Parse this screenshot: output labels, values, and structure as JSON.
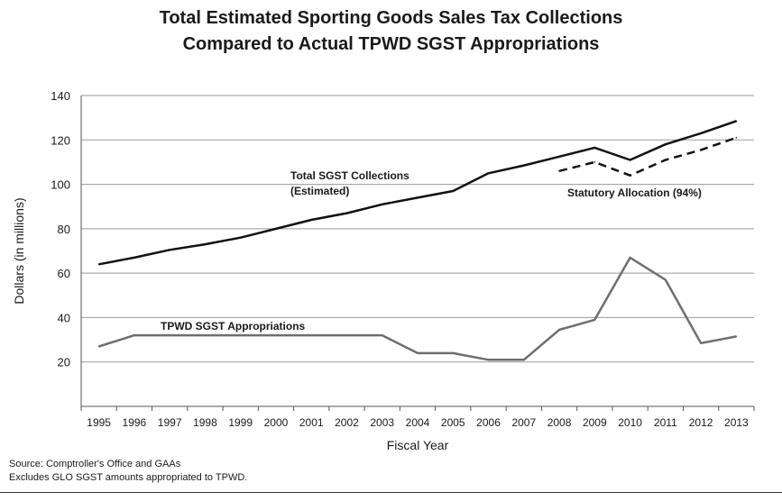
{
  "title_line1": "Total Estimated Sporting Goods Sales Tax Collections",
  "title_line2": "Compared to Actual TPWD SGST Appropriations",
  "source_note": "Source: Comptroller's Office and GAAs",
  "exclusion_note": "Excludes GLO SGST amounts appropriated to TPWD.",
  "chart_data": {
    "type": "line",
    "title": "Total Estimated Sporting Goods Sales Tax Collections Compared to Actual TPWD SGST Appropriations",
    "xlabel": "Fiscal Year",
    "ylabel": "Dollars (in millions)",
    "ylim": [
      0,
      140
    ],
    "yticks": [
      20,
      40,
      60,
      80,
      100,
      120,
      140
    ],
    "grid": true,
    "x": [
      "1995",
      "1996",
      "1997",
      "1998",
      "1999",
      "2000",
      "2001",
      "2002",
      "2003",
      "2004",
      "2005",
      "2006",
      "2007",
      "2008",
      "2009",
      "2010",
      "2011",
      "2012",
      "2013"
    ],
    "series": [
      {
        "label_line1": "Total SGST Collections",
        "label_line2": "(Estimated)",
        "color": "#111111",
        "style": "solid",
        "values": [
          64,
          67,
          70.5,
          73,
          76,
          80,
          84,
          87,
          91,
          94,
          97,
          105,
          108.5,
          112.5,
          116.5,
          111,
          118,
          123,
          128.5
        ]
      },
      {
        "label_line1": "Statutory Allocation (94%)",
        "color": "#111111",
        "style": "dashed",
        "values": [
          null,
          null,
          null,
          null,
          null,
          null,
          null,
          null,
          null,
          null,
          null,
          null,
          null,
          106,
          110,
          104,
          111,
          115.5,
          121
        ]
      },
      {
        "label_line1": "TPWD SGST Appropriations",
        "color": "#6e6e6e",
        "style": "solid",
        "values": [
          27,
          32,
          32,
          32,
          32,
          32,
          32,
          32,
          32,
          24,
          24,
          21,
          21,
          34.5,
          39,
          67,
          57,
          28.5,
          31.5
        ]
      }
    ]
  }
}
